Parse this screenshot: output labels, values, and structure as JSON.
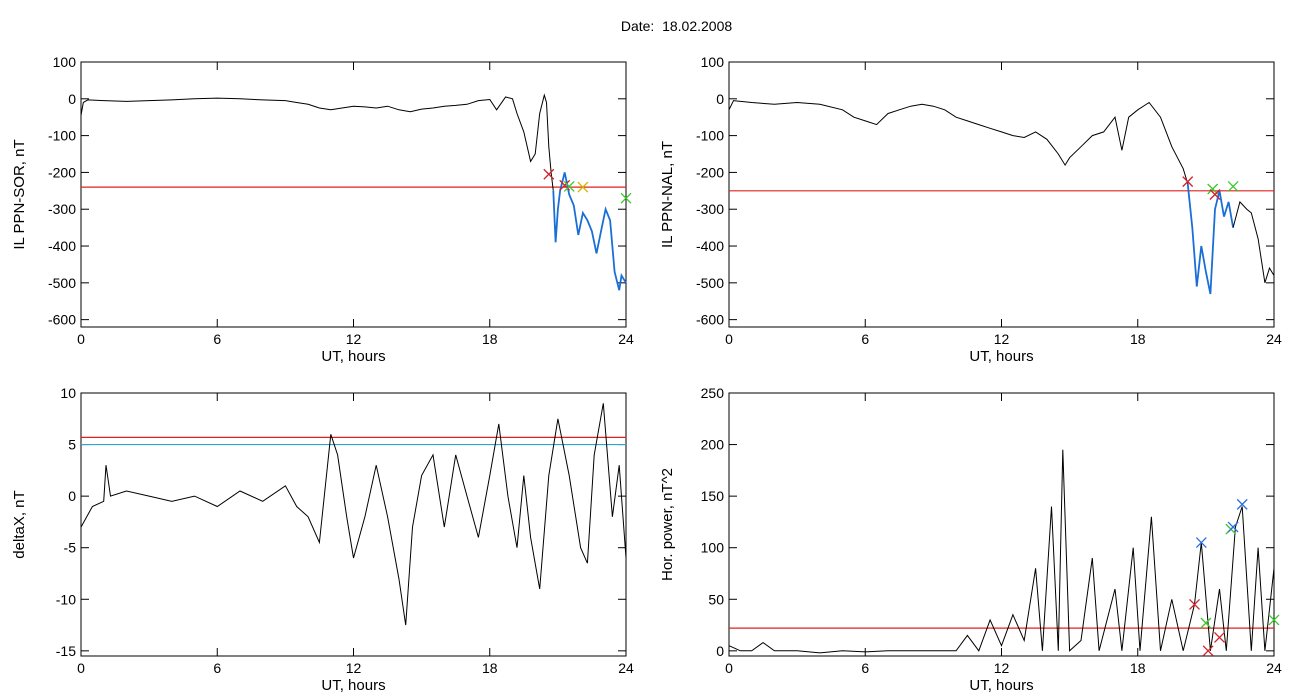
{
  "title": "Date:  18.02.2008",
  "colors": {
    "threshold": "#e0201b",
    "threshold2": "#2fa6c8",
    "segment": "#1a6fd6",
    "marker_red": "#d4202a",
    "marker_green": "#3cc72e",
    "marker_blue": "#2d6fe0",
    "marker_yellow": "#d4b800",
    "line": "#000000"
  },
  "chart_data": [
    {
      "type": "line",
      "xlabel": "UT, hours",
      "ylabel": "IL PPN-SOR, nT",
      "xlim": [
        0,
        24
      ],
      "ylim": [
        -620,
        100
      ],
      "xticks": [
        0,
        6,
        12,
        18,
        24
      ],
      "yticks": [
        100,
        0,
        -100,
        -200,
        -300,
        -400,
        -500,
        -600
      ],
      "threshold": -240,
      "series": [
        {
          "points": [
            [
              0,
              -45
            ],
            [
              0.1,
              -10
            ],
            [
              0.3,
              -3
            ],
            [
              1,
              -5
            ],
            [
              2,
              -7
            ],
            [
              3,
              -5
            ],
            [
              4,
              -3
            ],
            [
              5,
              0
            ],
            [
              6,
              2
            ],
            [
              7,
              0
            ],
            [
              8,
              -3
            ],
            [
              9,
              -5
            ],
            [
              9.5,
              -10
            ],
            [
              10,
              -15
            ],
            [
              10.5,
              -25
            ],
            [
              11,
              -30
            ],
            [
              11.5,
              -25
            ],
            [
              12,
              -20
            ],
            [
              12.5,
              -22
            ],
            [
              13,
              -25
            ],
            [
              13.5,
              -20
            ],
            [
              14,
              -30
            ],
            [
              14.5,
              -35
            ],
            [
              15,
              -28
            ],
            [
              15.5,
              -25
            ],
            [
              16,
              -20
            ],
            [
              16.5,
              -18
            ],
            [
              17,
              -15
            ],
            [
              17.5,
              -5
            ],
            [
              18,
              -2
            ],
            [
              18.3,
              -30
            ],
            [
              18.7,
              5
            ],
            [
              19,
              0
            ],
            [
              19.2,
              -40
            ],
            [
              19.5,
              -90
            ],
            [
              19.8,
              -170
            ],
            [
              20.0,
              -150
            ],
            [
              20.2,
              -40
            ],
            [
              20.4,
              10
            ],
            [
              20.5,
              -10
            ],
            [
              20.6,
              -130
            ],
            [
              20.7,
              -200
            ],
            [
              20.8,
              -250
            ]
          ]
        },
        {
          "points": [
            [
              20.8,
              -250
            ],
            [
              20.9,
              -390
            ],
            [
              21.0,
              -300
            ],
            [
              21.1,
              -250
            ],
            [
              21.3,
              -200
            ],
            [
              21.5,
              -260
            ],
            [
              21.7,
              -290
            ],
            [
              21.9,
              -370
            ],
            [
              22.1,
              -310
            ],
            [
              22.3,
              -330
            ],
            [
              22.5,
              -360
            ],
            [
              22.7,
              -420
            ],
            [
              22.9,
              -360
            ],
            [
              23.1,
              -300
            ],
            [
              23.3,
              -330
            ],
            [
              23.5,
              -470
            ],
            [
              23.7,
              -520
            ],
            [
              23.8,
              -480
            ],
            [
              24,
              -500
            ]
          ]
        }
      ],
      "markers": [
        {
          "x": 20.6,
          "y": -205,
          "color": "red"
        },
        {
          "x": 21.3,
          "y": -235,
          "color": "red"
        },
        {
          "x": 21.5,
          "y": -238,
          "color": "green"
        },
        {
          "x": 22.1,
          "y": -240,
          "color": "yellow"
        },
        {
          "x": 24.0,
          "y": -270,
          "color": "green"
        }
      ],
      "segment_range": [
        20.7,
        24
      ]
    },
    {
      "type": "line",
      "xlabel": "UT, hours",
      "ylabel": "IL PPN-NAL, nT",
      "xlim": [
        0,
        24
      ],
      "ylim": [
        -620,
        100
      ],
      "xticks": [
        0,
        6,
        12,
        18,
        24
      ],
      "yticks": [
        100,
        0,
        -100,
        -200,
        -300,
        -400,
        -500,
        -600
      ],
      "threshold": -250,
      "series": [
        {
          "points": [
            [
              0,
              -30
            ],
            [
              0.2,
              -5
            ],
            [
              1,
              -10
            ],
            [
              2,
              -15
            ],
            [
              3,
              -10
            ],
            [
              4,
              -15
            ],
            [
              5,
              -30
            ],
            [
              5.5,
              -50
            ],
            [
              6,
              -60
            ],
            [
              6.5,
              -70
            ],
            [
              7,
              -40
            ],
            [
              7.5,
              -30
            ],
            [
              8,
              -20
            ],
            [
              8.5,
              -15
            ],
            [
              9,
              -20
            ],
            [
              9.5,
              -30
            ],
            [
              10,
              -50
            ],
            [
              10.5,
              -60
            ],
            [
              11,
              -70
            ],
            [
              11.5,
              -80
            ],
            [
              12,
              -90
            ],
            [
              12.5,
              -100
            ],
            [
              13,
              -105
            ],
            [
              13.5,
              -90
            ],
            [
              14,
              -110
            ],
            [
              14.5,
              -150
            ],
            [
              14.8,
              -180
            ],
            [
              15,
              -160
            ],
            [
              15.5,
              -130
            ],
            [
              16,
              -100
            ],
            [
              16.5,
              -90
            ],
            [
              17,
              -50
            ],
            [
              17.3,
              -140
            ],
            [
              17.6,
              -50
            ],
            [
              18,
              -30
            ],
            [
              18.5,
              -10
            ],
            [
              19,
              -50
            ],
            [
              19.5,
              -130
            ],
            [
              20,
              -190
            ],
            [
              20.2,
              -230
            ]
          ]
        },
        {
          "points": [
            [
              20.2,
              -230
            ],
            [
              20.4,
              -350
            ],
            [
              20.6,
              -510
            ],
            [
              20.8,
              -400
            ],
            [
              21.0,
              -470
            ],
            [
              21.2,
              -530
            ],
            [
              21.4,
              -300
            ],
            [
              21.6,
              -250
            ],
            [
              21.8,
              -320
            ],
            [
              22.0,
              -280
            ],
            [
              22.2,
              -350
            ]
          ]
        },
        {
          "points": [
            [
              22.2,
              -350
            ],
            [
              22.5,
              -280
            ],
            [
              22.8,
              -300
            ],
            [
              23.0,
              -310
            ],
            [
              23.3,
              -380
            ],
            [
              23.6,
              -500
            ],
            [
              23.8,
              -460
            ],
            [
              24,
              -480
            ]
          ]
        }
      ],
      "markers": [
        {
          "x": 20.2,
          "y": -225,
          "color": "red"
        },
        {
          "x": 21.3,
          "y": -245,
          "color": "green"
        },
        {
          "x": 21.4,
          "y": -260,
          "color": "red"
        },
        {
          "x": 22.2,
          "y": -238,
          "color": "green"
        }
      ],
      "segment_range": [
        20.2,
        22.2
      ]
    },
    {
      "type": "line",
      "xlabel": "UT, hours",
      "ylabel": "deltaX, nT",
      "xlim": [
        0,
        24
      ],
      "ylim": [
        -15.5,
        10
      ],
      "xticks": [
        0,
        6,
        12,
        18,
        24
      ],
      "yticks": [
        10,
        5,
        0,
        -5,
        -10,
        -15
      ],
      "threshold": 5.7,
      "threshold2": 5.0,
      "series": [
        {
          "points": [
            [
              0,
              -3
            ],
            [
              0.5,
              -1
            ],
            [
              1,
              -0.5
            ],
            [
              1.1,
              3
            ],
            [
              1.3,
              0
            ],
            [
              2,
              0.5
            ],
            [
              3,
              0
            ],
            [
              4,
              -0.5
            ],
            [
              5,
              0
            ],
            [
              6,
              -1
            ],
            [
              7,
              0.5
            ],
            [
              8,
              -0.5
            ],
            [
              9,
              1
            ],
            [
              9.5,
              -1
            ],
            [
              10,
              -2
            ],
            [
              10.5,
              -4.5
            ],
            [
              11,
              6
            ],
            [
              11.3,
              4
            ],
            [
              11.7,
              -2
            ],
            [
              12,
              -6
            ],
            [
              12.5,
              -2
            ],
            [
              13,
              3
            ],
            [
              13.5,
              -2
            ],
            [
              14,
              -8
            ],
            [
              14.3,
              -12.5
            ],
            [
              14.6,
              -3
            ],
            [
              15,
              2
            ],
            [
              15.5,
              4
            ],
            [
              16,
              -3
            ],
            [
              16.5,
              4
            ],
            [
              17,
              0
            ],
            [
              17.5,
              -4
            ],
            [
              18,
              2
            ],
            [
              18.4,
              7
            ],
            [
              18.8,
              0
            ],
            [
              19.2,
              -5
            ],
            [
              19.5,
              2
            ],
            [
              19.8,
              -4
            ],
            [
              20.2,
              -9
            ],
            [
              20.6,
              2
            ],
            [
              21,
              7.5
            ],
            [
              21.5,
              2
            ],
            [
              22,
              -5
            ],
            [
              22.3,
              -6.5
            ],
            [
              22.6,
              4
            ],
            [
              23,
              9
            ],
            [
              23.4,
              -2
            ],
            [
              23.7,
              3
            ],
            [
              24,
              -6
            ]
          ]
        }
      ],
      "markers": []
    },
    {
      "type": "line",
      "xlabel": "UT, hours",
      "ylabel": "Hor. power, nT^2",
      "xlim": [
        0,
        24
      ],
      "ylim": [
        -5,
        250
      ],
      "xticks": [
        0,
        6,
        12,
        18,
        24
      ],
      "yticks": [
        250,
        200,
        150,
        100,
        50,
        0
      ],
      "threshold": 22,
      "series": [
        {
          "points": [
            [
              0,
              5
            ],
            [
              0.5,
              0
            ],
            [
              1,
              0
            ],
            [
              1.5,
              8
            ],
            [
              2,
              0
            ],
            [
              3,
              0
            ],
            [
              4,
              -2
            ],
            [
              5,
              0
            ],
            [
              6,
              -1
            ],
            [
              7,
              0
            ],
            [
              8,
              0
            ],
            [
              9,
              0
            ],
            [
              10,
              0
            ],
            [
              10.5,
              15
            ],
            [
              11,
              0
            ],
            [
              11.5,
              30
            ],
            [
              12,
              5
            ],
            [
              12.5,
              35
            ],
            [
              13,
              10
            ],
            [
              13.5,
              80
            ],
            [
              13.8,
              0
            ],
            [
              14.2,
              140
            ],
            [
              14.5,
              0
            ],
            [
              14.7,
              195
            ],
            [
              15,
              0
            ],
            [
              15.5,
              10
            ],
            [
              16,
              90
            ],
            [
              16.3,
              0
            ],
            [
              17,
              60
            ],
            [
              17.3,
              0
            ],
            [
              17.8,
              100
            ],
            [
              18.1,
              0
            ],
            [
              18.6,
              130
            ],
            [
              19,
              0
            ],
            [
              19.5,
              50
            ],
            [
              20,
              0
            ],
            [
              20.5,
              45
            ],
            [
              20.8,
              105
            ],
            [
              21.2,
              0
            ],
            [
              21.6,
              60
            ],
            [
              21.9,
              0
            ],
            [
              22.3,
              120
            ],
            [
              22.6,
              140
            ],
            [
              23,
              0
            ],
            [
              23.3,
              100
            ],
            [
              23.6,
              0
            ],
            [
              24,
              80
            ]
          ]
        }
      ],
      "markers": [
        {
          "x": 20.5,
          "y": 45,
          "color": "red"
        },
        {
          "x": 20.8,
          "y": 105,
          "color": "blue"
        },
        {
          "x": 21.0,
          "y": 27,
          "color": "green"
        },
        {
          "x": 21.1,
          "y": 0,
          "color": "red"
        },
        {
          "x": 21.6,
          "y": 13,
          "color": "red"
        },
        {
          "x": 22.1,
          "y": 118,
          "color": "green"
        },
        {
          "x": 22.2,
          "y": 120,
          "color": "blue"
        },
        {
          "x": 22.6,
          "y": 142,
          "color": "blue"
        },
        {
          "x": 24.0,
          "y": 30,
          "color": "green"
        }
      ]
    }
  ]
}
